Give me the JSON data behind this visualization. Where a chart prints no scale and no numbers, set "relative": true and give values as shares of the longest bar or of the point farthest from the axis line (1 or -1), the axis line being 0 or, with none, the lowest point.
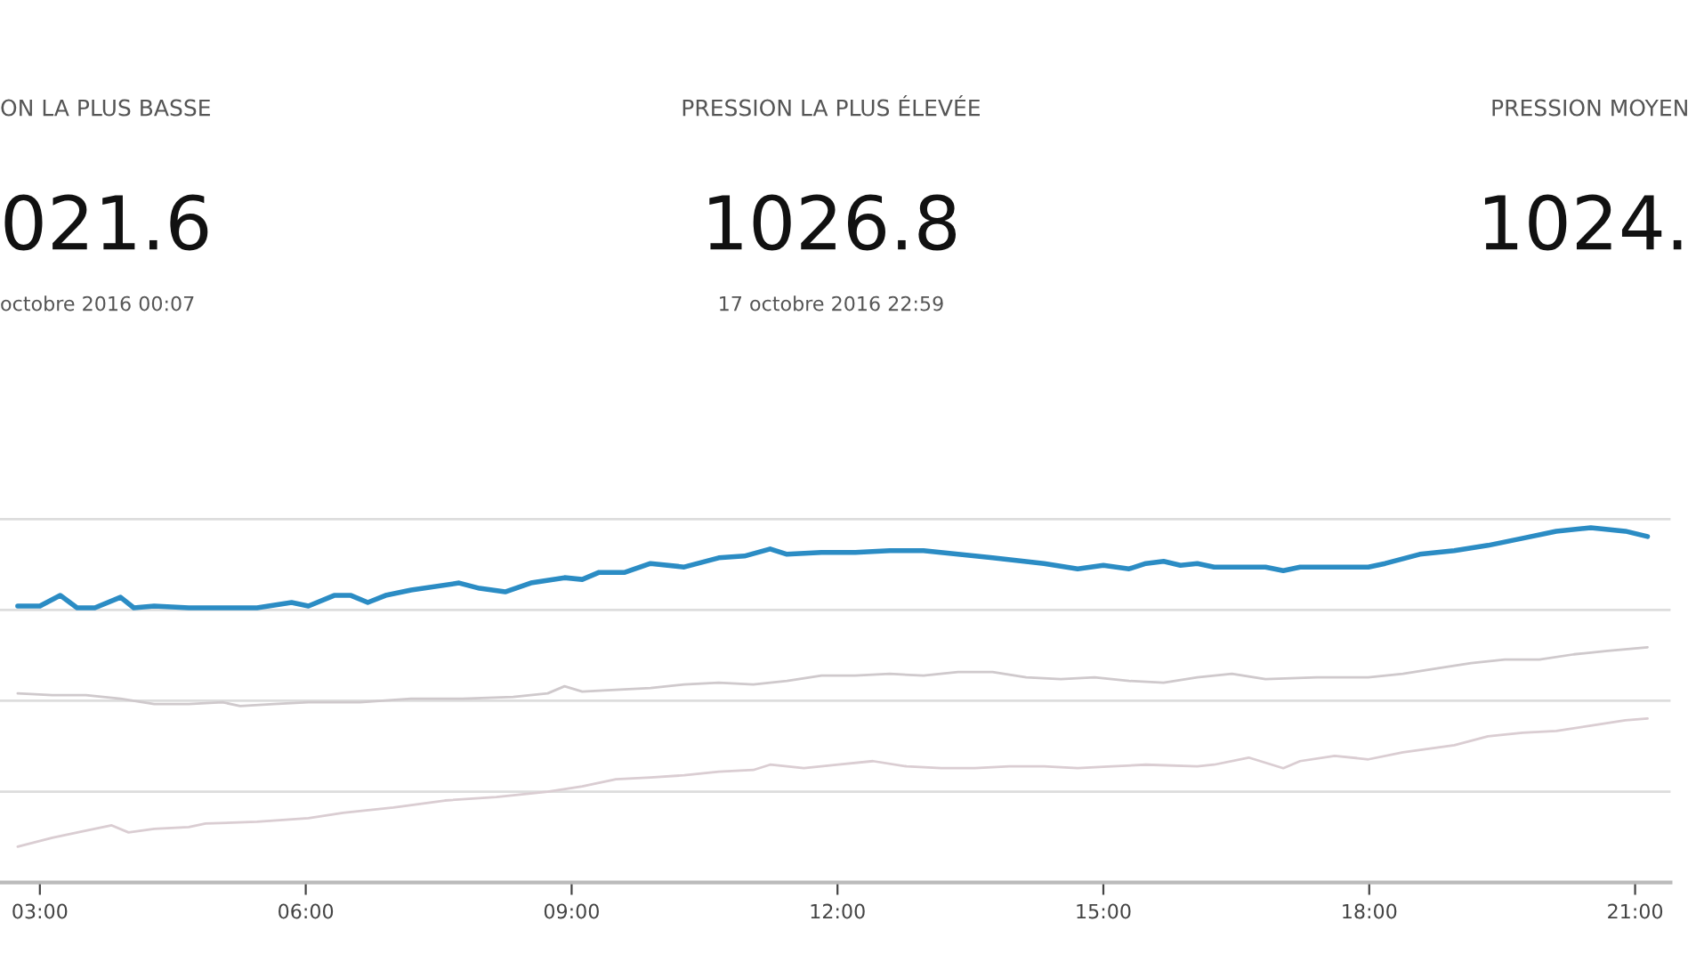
{
  "chart_data": {
    "type": "line",
    "relative": true,
    "grid": "y",
    "annotations": [
      "ON LA PLUS BASSE",
      "021.6",
      "octobre 2016 00:07",
      "PRESSION LA PLUS ÉLEVÉE",
      "1026.8",
      "17 octobre 2016 22:59",
      "PRESSION MOYEN",
      "1024."
    ],
    "xlim": [
      2.55,
      21.4
    ],
    "xticks": [
      {
        "value": 3,
        "label": "03:00"
      },
      {
        "value": 6,
        "label": "06:00"
      },
      {
        "value": 9,
        "label": "09:00"
      },
      {
        "value": 12,
        "label": "12:00"
      },
      {
        "value": 15,
        "label": "15:00"
      },
      {
        "value": 18,
        "label": "18:00"
      },
      {
        "value": 21,
        "label": "21:00"
      }
    ],
    "series": [
      {
        "color": "#2b8cc4",
        "x": [
          2.75,
          3.0,
          3.23,
          3.42,
          3.62,
          3.91,
          4.06,
          4.29,
          4.68,
          5.45,
          5.84,
          6.03,
          6.32,
          6.51,
          6.7,
          6.9,
          7.19,
          7.73,
          7.96,
          8.25,
          8.54,
          8.92,
          9.12,
          9.31,
          9.6,
          9.89,
          10.27,
          10.66,
          10.95,
          11.24,
          11.43,
          11.82,
          12.2,
          12.59,
          12.97,
          13.36,
          13.75,
          14.33,
          14.71,
          15.0,
          15.29,
          15.48,
          15.68,
          15.87,
          16.06,
          16.25,
          16.83,
          17.03,
          17.22,
          17.61,
          17.99,
          18.18,
          18.57,
          18.96,
          19.34,
          19.73,
          20.11,
          20.5,
          20.89,
          21.14
        ],
        "values": [
          0.779,
          0.779,
          0.809,
          0.774,
          0.774,
          0.804,
          0.774,
          0.779,
          0.774,
          0.774,
          0.789,
          0.779,
          0.809,
          0.809,
          0.789,
          0.809,
          0.824,
          0.844,
          0.829,
          0.819,
          0.844,
          0.859,
          0.854,
          0.874,
          0.874,
          0.899,
          0.889,
          0.915,
          0.92,
          0.94,
          0.925,
          0.93,
          0.93,
          0.935,
          0.935,
          0.925,
          0.915,
          0.899,
          0.884,
          0.894,
          0.884,
          0.899,
          0.905,
          0.894,
          0.899,
          0.889,
          0.889,
          0.879,
          0.889,
          0.889,
          0.889,
          0.899,
          0.925,
          0.935,
          0.95,
          0.97,
          0.99,
          1.0,
          0.99,
          0.975
        ]
      },
      {
        "color": "#cfc9cc",
        "x": [
          2.75,
          3.14,
          3.52,
          3.91,
          4.29,
          4.68,
          5.06,
          5.26,
          5.64,
          6.03,
          6.61,
          7.19,
          7.77,
          8.34,
          8.73,
          8.92,
          9.12,
          9.5,
          9.89,
          10.27,
          10.66,
          11.05,
          11.43,
          11.82,
          12.2,
          12.59,
          12.97,
          13.36,
          13.75,
          14.13,
          14.52,
          14.9,
          15.29,
          15.68,
          16.06,
          16.45,
          16.83,
          17.41,
          17.99,
          18.38,
          18.76,
          19.15,
          19.53,
          19.92,
          20.31,
          20.69,
          21.14
        ],
        "values": [
          0.533,
          0.528,
          0.528,
          0.518,
          0.503,
          0.503,
          0.508,
          0.497,
          0.503,
          0.508,
          0.508,
          0.518,
          0.518,
          0.523,
          0.533,
          0.553,
          0.538,
          0.543,
          0.548,
          0.558,
          0.563,
          0.558,
          0.568,
          0.583,
          0.583,
          0.588,
          0.583,
          0.593,
          0.593,
          0.578,
          0.573,
          0.578,
          0.568,
          0.563,
          0.578,
          0.588,
          0.573,
          0.578,
          0.578,
          0.588,
          0.603,
          0.618,
          0.628,
          0.628,
          0.643,
          0.653,
          0.663
        ]
      },
      {
        "color": "#dacdd2",
        "x": [
          2.75,
          3.14,
          3.52,
          3.81,
          4.0,
          4.29,
          4.68,
          4.87,
          5.45,
          6.03,
          6.42,
          6.99,
          7.57,
          8.15,
          8.73,
          9.12,
          9.5,
          9.89,
          10.27,
          10.66,
          11.05,
          11.24,
          11.62,
          12.01,
          12.4,
          12.78,
          13.17,
          13.55,
          13.94,
          14.33,
          14.71,
          15.1,
          15.48,
          16.06,
          16.25,
          16.64,
          17.03,
          17.22,
          17.61,
          17.99,
          18.38,
          18.96,
          19.34,
          19.73,
          20.11,
          20.5,
          20.89,
          21.14
        ],
        "values": [
          0.101,
          0.126,
          0.146,
          0.161,
          0.141,
          0.151,
          0.156,
          0.166,
          0.171,
          0.181,
          0.196,
          0.211,
          0.231,
          0.241,
          0.256,
          0.271,
          0.291,
          0.296,
          0.302,
          0.312,
          0.317,
          0.332,
          0.322,
          0.332,
          0.342,
          0.327,
          0.322,
          0.322,
          0.327,
          0.327,
          0.322,
          0.327,
          0.332,
          0.327,
          0.332,
          0.352,
          0.322,
          0.342,
          0.357,
          0.347,
          0.367,
          0.387,
          0.412,
          0.422,
          0.427,
          0.442,
          0.457,
          0.462
        ]
      }
    ]
  }
}
